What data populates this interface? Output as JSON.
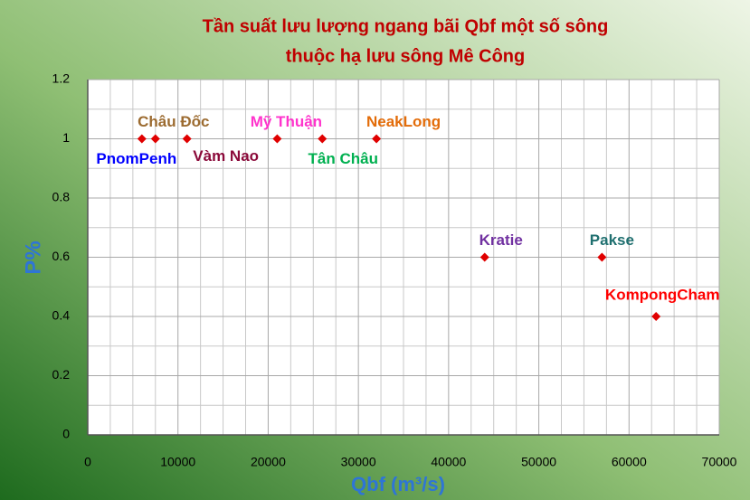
{
  "chart_data": {
    "type": "scatter",
    "title": [
      "Tần suất lưu lượng ngang bãi Qbf một số sông",
      "thuộc hạ lưu sông Mê Công"
    ],
    "xlabel": "Qbf (m³/s)",
    "ylabel": "P%",
    "x": [
      6000,
      7500,
      11000,
      21000,
      26000,
      32000,
      44000,
      57000,
      63000
    ],
    "values": [
      1,
      1,
      1,
      1,
      1,
      1,
      0.6,
      0.6,
      0.4
    ],
    "point_labels": [
      "PnomPenh",
      "Châu Đốc",
      "Vàm Nao",
      "Mỹ Thuận",
      "Tân Châu",
      "NeakLong",
      "Kratie",
      "Pakse",
      "KompongCham"
    ],
    "label_colors": [
      "#0000ff",
      "#9c6b30",
      "#8b0a3a",
      "#ff33cc",
      "#00b050",
      "#e36c09",
      "#7030a0",
      "#1f6f6f",
      "#ff0000"
    ],
    "color": "#e00000",
    "xlim": [
      0,
      70000
    ],
    "xticks": [
      0,
      10000,
      20000,
      30000,
      40000,
      50000,
      60000,
      70000
    ],
    "ylim": [
      0,
      1.2
    ],
    "yticks": [
      0,
      0.2,
      0.4,
      0.6,
      0.8,
      1,
      1.2
    ],
    "grid": true
  }
}
